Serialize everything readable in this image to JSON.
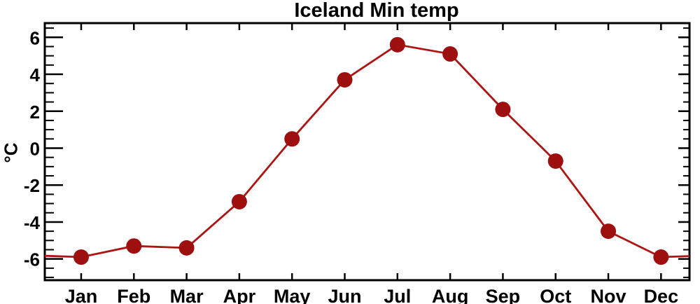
{
  "chart_data": {
    "type": "line",
    "title": "Iceland Min temp",
    "ylabel": "°C",
    "xlabel": "",
    "categories": [
      "Jan",
      "Feb",
      "Mar",
      "Apr",
      "May",
      "Jun",
      "Jul",
      "Aug",
      "Sep",
      "Oct",
      "Nov",
      "Dec"
    ],
    "series": [
      {
        "name": "Iceland Min temp",
        "values": [
          -5.9,
          -5.3,
          -5.4,
          -2.9,
          0.5,
          3.7,
          5.6,
          5.1,
          2.1,
          -0.7,
          -4.5,
          -5.9
        ]
      }
    ],
    "edge_wrap": {
      "before_jan": -5.8,
      "after_dec": -5.8
    },
    "y_ticks": [
      6,
      4,
      2,
      0,
      -2,
      -4,
      -6
    ],
    "y_tick_labels": [
      "6",
      "4",
      "2",
      "0",
      "-2",
      "-4",
      "-6"
    ],
    "y_minor_tick_step": 0.5,
    "ylim": [
      -7.15,
      6.77
    ],
    "xlim": [
      0.31,
      12.54
    ],
    "grid": false,
    "legend": false,
    "line_color": "#ad1414",
    "marker_color": "#9e0f0f",
    "marker_radius": 11,
    "axis_color": "#000000",
    "tick_style": "inward, mirrored on top and right axes"
  }
}
